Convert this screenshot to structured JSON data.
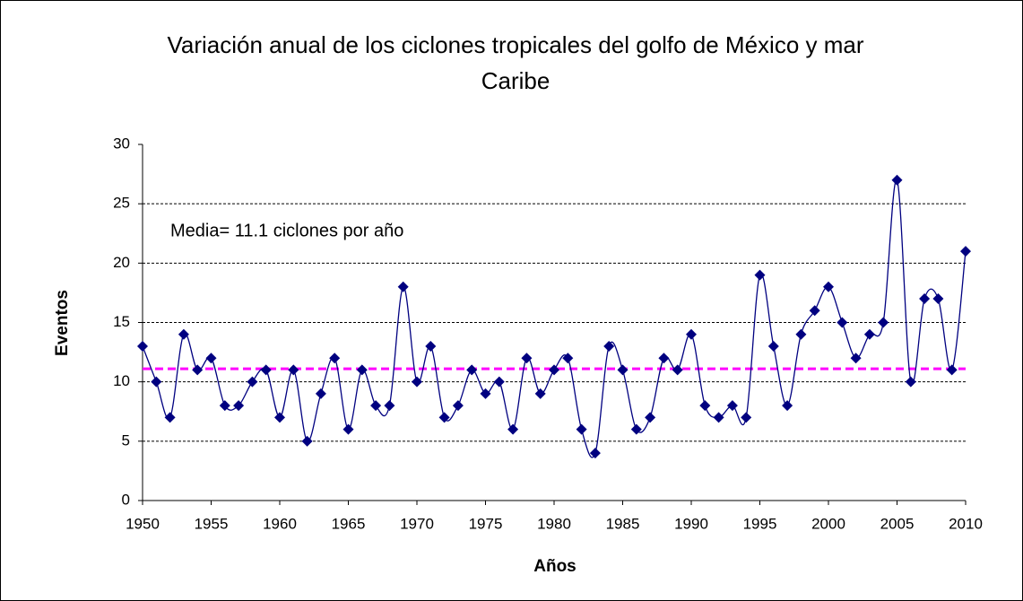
{
  "chart_data": {
    "type": "line",
    "title": "Variación anual de los ciclones tropicales del golfo de México y mar Caribe",
    "x_label": "Años",
    "y_label": "Eventos",
    "annotation": "Media= 11.1 ciclones por año",
    "x": [
      1950,
      1951,
      1952,
      1953,
      1954,
      1955,
      1956,
      1957,
      1958,
      1959,
      1960,
      1961,
      1962,
      1963,
      1964,
      1965,
      1966,
      1967,
      1968,
      1969,
      1970,
      1971,
      1972,
      1973,
      1974,
      1975,
      1976,
      1977,
      1978,
      1979,
      1980,
      1981,
      1982,
      1983,
      1984,
      1985,
      1986,
      1987,
      1988,
      1989,
      1990,
      1991,
      1992,
      1993,
      1994,
      1995,
      1996,
      1997,
      1998,
      1999,
      2000,
      2001,
      2002,
      2003,
      2004,
      2005,
      2006,
      2007,
      2008,
      2009,
      2010
    ],
    "series": [
      {
        "color": "#000080",
        "values": [
          13,
          10,
          7,
          14,
          11,
          12,
          8,
          8,
          10,
          11,
          7,
          11,
          5,
          9,
          12,
          6,
          11,
          8,
          8,
          18,
          10,
          13,
          7,
          8,
          11,
          9,
          10,
          6,
          12,
          9,
          11,
          12,
          6,
          4,
          13,
          11,
          6,
          7,
          12,
          11,
          14,
          8,
          7,
          8,
          7,
          19,
          13,
          8,
          14,
          16,
          18,
          15,
          12,
          14,
          15,
          27,
          10,
          17,
          17,
          11,
          21
        ]
      }
    ],
    "mean_line": {
      "value": 11.1,
      "color": "#ff00ff"
    },
    "xlim": [
      1950,
      2010
    ],
    "xticks": [
      1950,
      1955,
      1960,
      1965,
      1970,
      1975,
      1980,
      1985,
      1990,
      1995,
      2000,
      2005,
      2010
    ],
    "ylim": [
      0,
      30
    ],
    "yticks": [
      0,
      5,
      10,
      15,
      20,
      25,
      30
    ],
    "grid": true
  }
}
